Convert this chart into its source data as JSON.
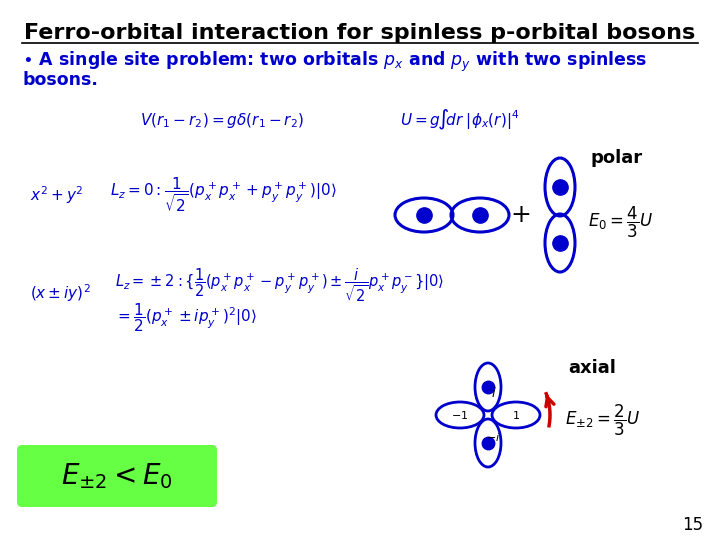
{
  "title": "Ferro-orbital interaction for spinless p-orbital bosons",
  "polar_label": "polar",
  "axial_label": "axial",
  "page_number": "15",
  "bg_color": "#ffffff",
  "title_color": "#000000",
  "orbital_blue": "#0000cc",
  "orbital_red": "#cc0000",
  "eq_box_color": "#66ff44",
  "text_color": "#000000",
  "bullet_color": "#0000cc"
}
